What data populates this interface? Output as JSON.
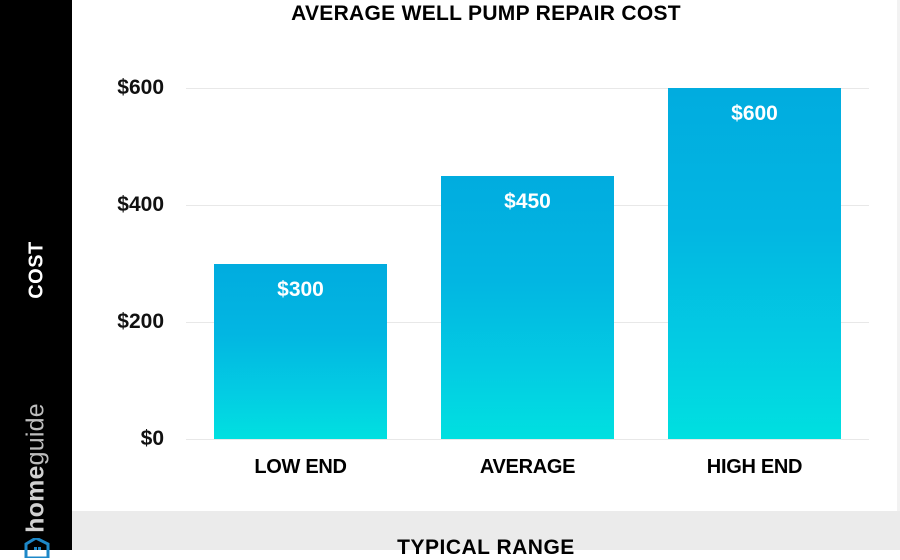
{
  "title": "AVERAGE WELL PUMP REPAIR COST",
  "sidebar": {
    "ylabel": "COST",
    "brand_bold": "home",
    "brand_light": "guide"
  },
  "footer": {
    "label": "TYPICAL RANGE"
  },
  "colors": {
    "bar_top": "#01acdf",
    "bar_bottom": "#00e0e0",
    "sidebar": "#000000",
    "footer": "#ebebeb"
  },
  "chart_data": {
    "type": "bar",
    "title": "AVERAGE WELL PUMP REPAIR COST",
    "xlabel": "TYPICAL RANGE",
    "ylabel": "COST",
    "categories": [
      "LOW END",
      "AVERAGE",
      "HIGH END"
    ],
    "values": [
      300,
      450,
      600
    ],
    "value_labels": [
      "$300",
      "$450",
      "$600"
    ],
    "yticks": [
      0,
      200,
      400,
      600
    ],
    "ytick_labels": [
      "$0",
      "$200",
      "$400",
      "$600"
    ],
    "ylim": [
      0,
      600
    ],
    "grid": true,
    "legend": null
  }
}
